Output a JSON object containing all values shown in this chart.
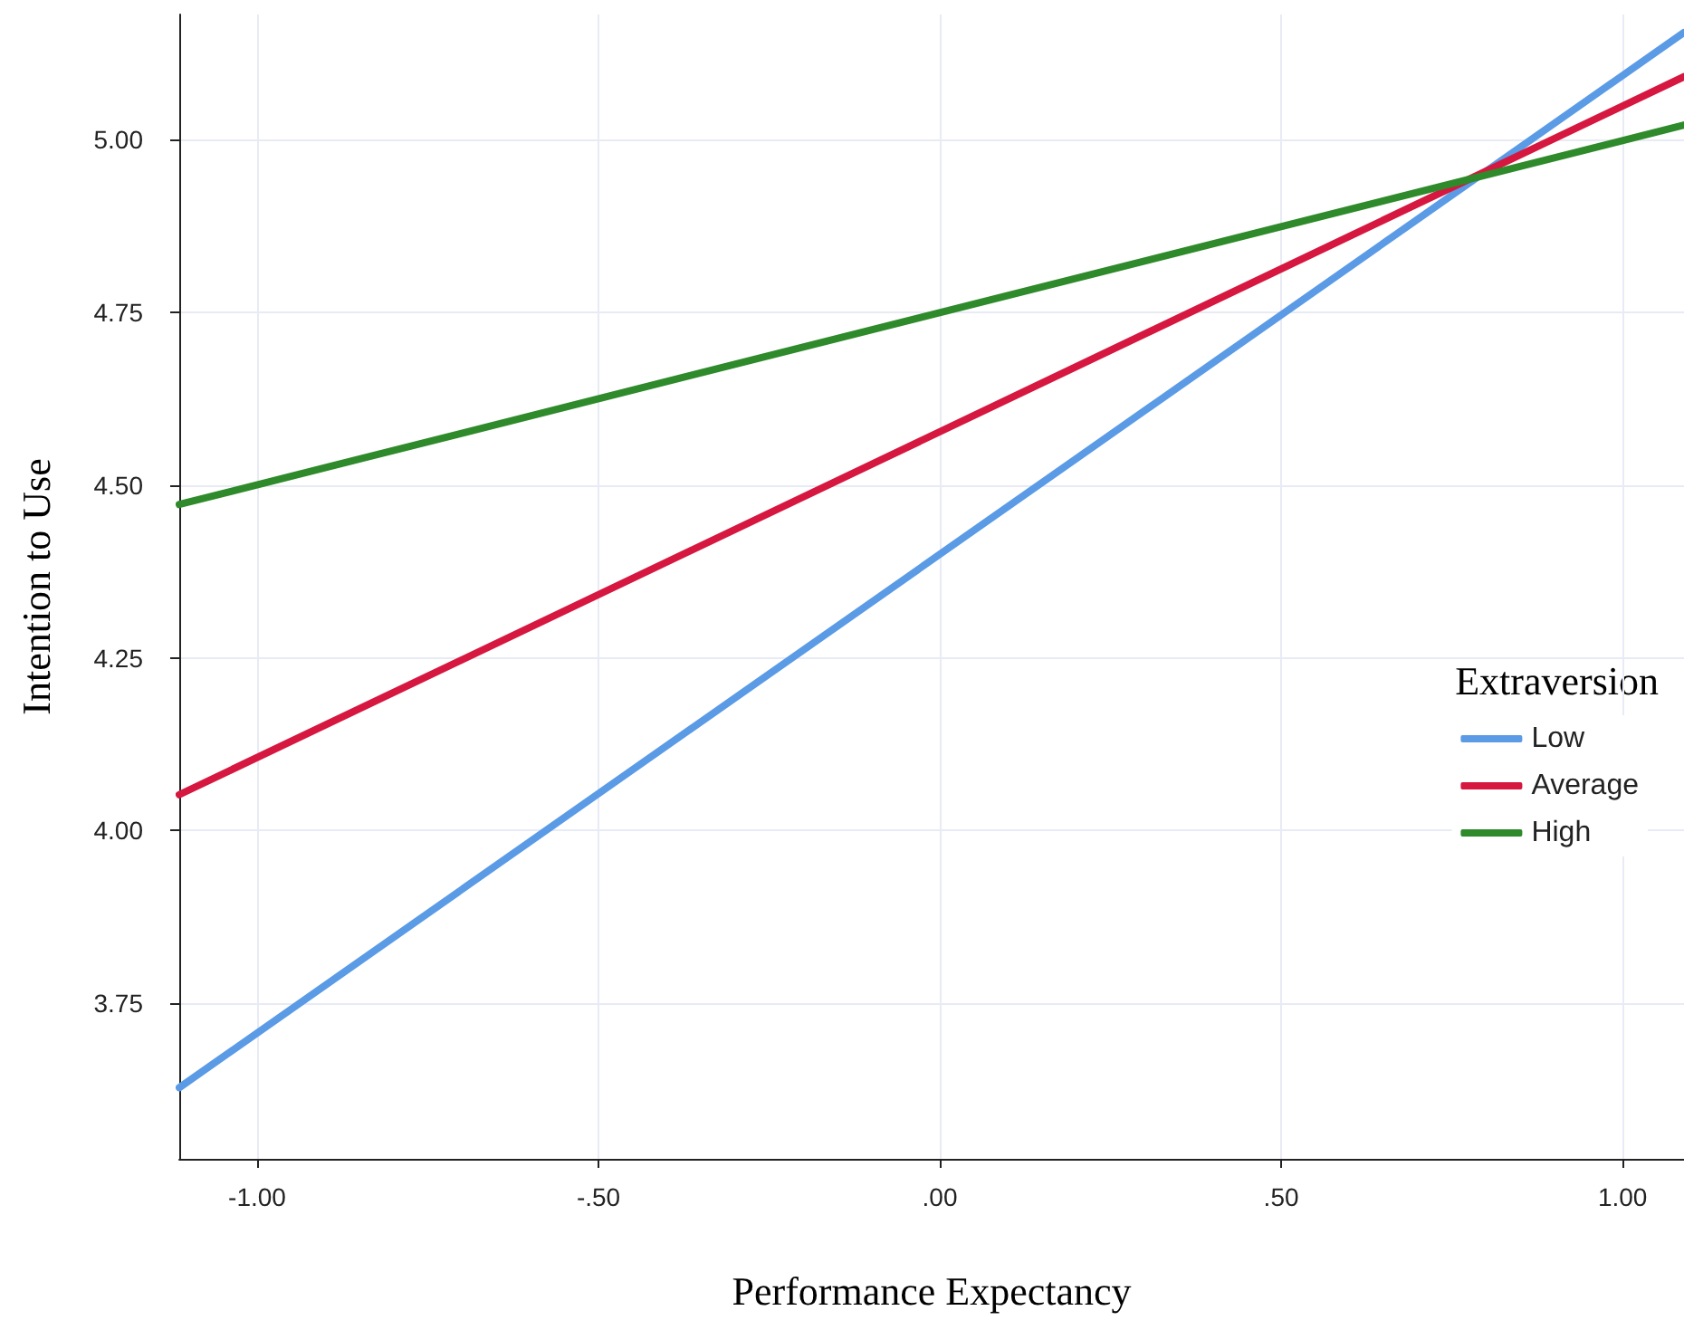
{
  "chart_data": {
    "type": "line",
    "xlabel": "Performance Expectancy",
    "ylabel": "Intention to Use",
    "legend_title": "Extraversion",
    "series": [
      {
        "name": "Low",
        "color": "#5b9be6",
        "values": [
          3.628,
          5.155
        ]
      },
      {
        "name": "Average",
        "color": "#d6173f",
        "values": [
          4.052,
          5.091
        ]
      },
      {
        "name": "High",
        "color": "#2e8a2a",
        "values": [
          4.472,
          5.021
        ]
      }
    ],
    "x": [
      -1.114,
      1.09
    ],
    "xlim": [
      -1.114,
      1.09
    ],
    "xticks": [
      {
        "value": -1,
        "label": "-1.00"
      },
      {
        "value": -0.5,
        "label": "-.50"
      },
      {
        "value": 0,
        "label": ".00"
      },
      {
        "value": 0.5,
        "label": ".50"
      },
      {
        "value": 1,
        "label": "1.00"
      }
    ],
    "ylim": [
      3.525,
      5.181
    ],
    "yticks": [
      {
        "value": 3.75,
        "label": "3.75"
      },
      {
        "value": 4,
        "label": "4.00"
      },
      {
        "value": 4.25,
        "label": "4.25"
      },
      {
        "value": 4.5,
        "label": "4.50"
      },
      {
        "value": 4.75,
        "label": "4.75"
      },
      {
        "value": 5,
        "label": "5.00"
      }
    ],
    "grid": true,
    "legend": "right",
    "marker": "none",
    "line_style": "solid"
  }
}
